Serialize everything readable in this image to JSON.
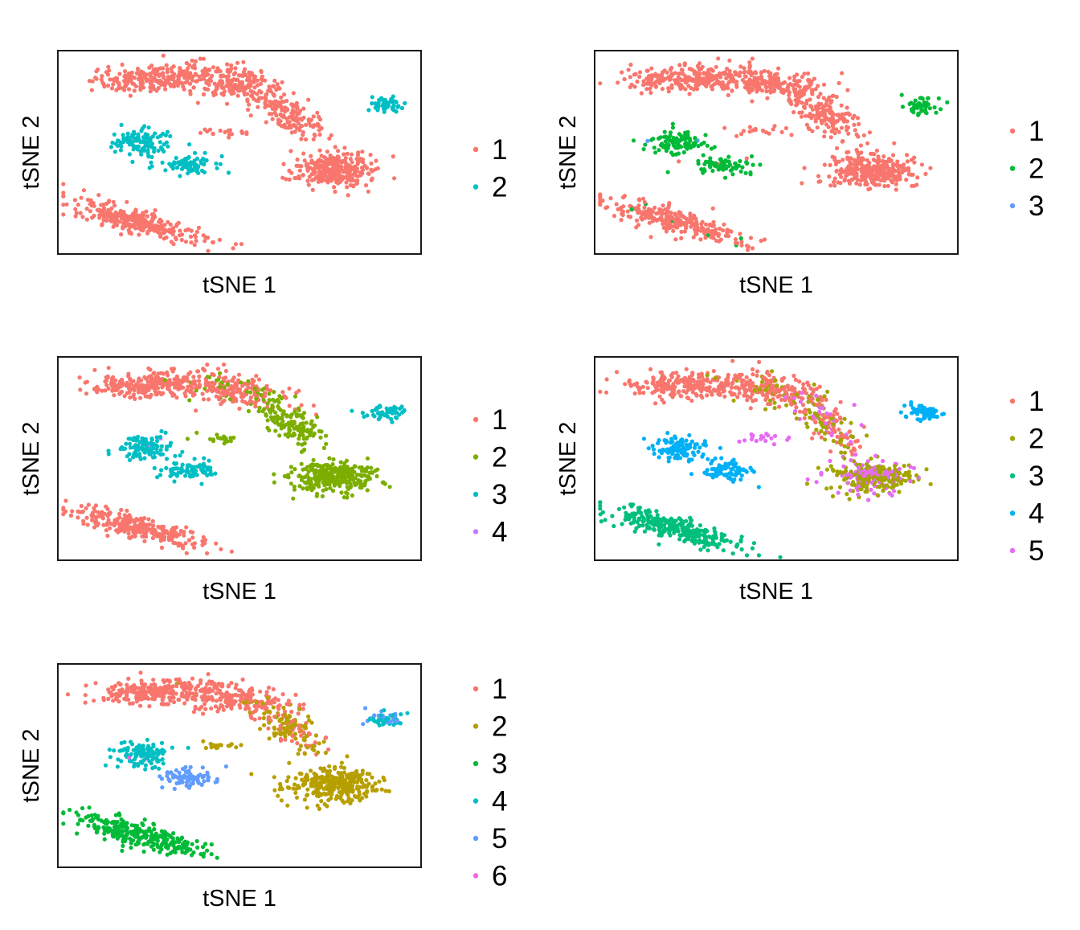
{
  "chart_data": [
    {
      "type": "scatter",
      "xlabel": "tSNE 1",
      "ylabel": "tSNE 2",
      "grid": false,
      "axis_ticks": false,
      "legend_position": "right",
      "legend": [
        "1",
        "2"
      ],
      "colors": [
        "#F8766D",
        "#00BFC4"
      ],
      "regions": [
        {
          "name": "top-band-left",
          "cx": 0.25,
          "cy": 0.86,
          "sx": 0.08,
          "sy": 0.03,
          "n": 220,
          "mix": [
            [
              1,
              1
            ]
          ]
        },
        {
          "name": "top-band-mid",
          "cx": 0.48,
          "cy": 0.84,
          "sx": 0.08,
          "sy": 0.04,
          "n": 220,
          "mix": [
            [
              1,
              1
            ]
          ]
        },
        {
          "name": "diag-arm",
          "cx": 0.64,
          "cy": 0.68,
          "sx": 0.05,
          "sy": 0.05,
          "n": 150,
          "mix": [
            [
              1,
              1
            ]
          ]
        },
        {
          "name": "right-blob",
          "cx": 0.76,
          "cy": 0.41,
          "sx": 0.06,
          "sy": 0.04,
          "n": 300,
          "mix": [
            [
              1,
              1
            ]
          ]
        },
        {
          "name": "upper-left-blob",
          "cx": 0.23,
          "cy": 0.55,
          "sx": 0.04,
          "sy": 0.03,
          "n": 110,
          "mix": [
            [
              2,
              1
            ]
          ]
        },
        {
          "name": "mid-left-blob",
          "cx": 0.36,
          "cy": 0.44,
          "sx": 0.04,
          "sy": 0.02,
          "n": 80,
          "mix": [
            [
              2,
              1
            ]
          ]
        },
        {
          "name": "far-right-blob",
          "cx": 0.9,
          "cy": 0.73,
          "sx": 0.025,
          "sy": 0.02,
          "n": 55,
          "mix": [
            [
              2,
              1
            ]
          ]
        },
        {
          "name": "bottom-left-cluster",
          "cx": 0.22,
          "cy": 0.16,
          "sx": 0.09,
          "sy": 0.03,
          "n": 280,
          "mix": [
            [
              1,
              1
            ]
          ]
        },
        {
          "name": "bridge",
          "cx": 0.45,
          "cy": 0.6,
          "sx": 0.04,
          "sy": 0.012,
          "n": 18,
          "mix": [
            [
              1,
              1
            ]
          ]
        }
      ]
    },
    {
      "type": "scatter",
      "xlabel": "tSNE 1",
      "ylabel": "tSNE 2",
      "grid": false,
      "axis_ticks": false,
      "legend_position": "right",
      "legend": [
        "1",
        "2",
        "3"
      ],
      "colors": [
        "#F8766D",
        "#00BA38",
        "#619CFF"
      ],
      "regions": [
        {
          "name": "top-band-left",
          "cx": 0.25,
          "cy": 0.86,
          "sx": 0.08,
          "sy": 0.03,
          "n": 220,
          "mix": [
            [
              1,
              1
            ]
          ]
        },
        {
          "name": "top-band-mid",
          "cx": 0.48,
          "cy": 0.84,
          "sx": 0.08,
          "sy": 0.04,
          "n": 220,
          "mix": [
            [
              1,
              0.99
            ],
            [
              3,
              0.01
            ]
          ]
        },
        {
          "name": "diag-arm",
          "cx": 0.64,
          "cy": 0.68,
          "sx": 0.05,
          "sy": 0.05,
          "n": 150,
          "mix": [
            [
              1,
              1
            ]
          ]
        },
        {
          "name": "right-blob",
          "cx": 0.76,
          "cy": 0.41,
          "sx": 0.06,
          "sy": 0.04,
          "n": 300,
          "mix": [
            [
              1,
              1
            ]
          ]
        },
        {
          "name": "upper-left-blob",
          "cx": 0.23,
          "cy": 0.55,
          "sx": 0.04,
          "sy": 0.03,
          "n": 110,
          "mix": [
            [
              2,
              0.97
            ],
            [
              3,
              0.03
            ]
          ]
        },
        {
          "name": "mid-left-blob",
          "cx": 0.36,
          "cy": 0.44,
          "sx": 0.04,
          "sy": 0.02,
          "n": 80,
          "mix": [
            [
              2,
              0.9
            ],
            [
              1,
              0.1
            ]
          ]
        },
        {
          "name": "far-right-blob",
          "cx": 0.9,
          "cy": 0.73,
          "sx": 0.025,
          "sy": 0.02,
          "n": 55,
          "mix": [
            [
              2,
              1
            ]
          ]
        },
        {
          "name": "bottom-left-cluster",
          "cx": 0.22,
          "cy": 0.16,
          "sx": 0.09,
          "sy": 0.03,
          "n": 280,
          "mix": [
            [
              1,
              0.96
            ],
            [
              2,
              0.04
            ]
          ]
        },
        {
          "name": "bridge",
          "cx": 0.45,
          "cy": 0.6,
          "sx": 0.04,
          "sy": 0.012,
          "n": 18,
          "mix": [
            [
              1,
              1
            ]
          ]
        }
      ]
    },
    {
      "type": "scatter",
      "xlabel": "tSNE 1",
      "ylabel": "tSNE 2",
      "grid": false,
      "axis_ticks": false,
      "legend_position": "right",
      "legend": [
        "1",
        "2",
        "3",
        "4"
      ],
      "colors": [
        "#F8766D",
        "#7CAE00",
        "#00BFC4",
        "#C77CFF"
      ],
      "regions": [
        {
          "name": "top-band-left",
          "cx": 0.25,
          "cy": 0.86,
          "sx": 0.08,
          "sy": 0.03,
          "n": 220,
          "mix": [
            [
              1,
              1
            ]
          ]
        },
        {
          "name": "top-band-mid",
          "cx": 0.48,
          "cy": 0.84,
          "sx": 0.08,
          "sy": 0.04,
          "n": 220,
          "mix": [
            [
              1,
              0.85
            ],
            [
              2,
              0.15
            ]
          ]
        },
        {
          "name": "diag-arm",
          "cx": 0.64,
          "cy": 0.68,
          "sx": 0.05,
          "sy": 0.05,
          "n": 150,
          "mix": [
            [
              2,
              1
            ]
          ]
        },
        {
          "name": "right-blob",
          "cx": 0.76,
          "cy": 0.41,
          "sx": 0.06,
          "sy": 0.04,
          "n": 300,
          "mix": [
            [
              2,
              1
            ]
          ]
        },
        {
          "name": "upper-left-blob",
          "cx": 0.23,
          "cy": 0.55,
          "sx": 0.04,
          "sy": 0.03,
          "n": 110,
          "mix": [
            [
              3,
              0.98
            ],
            [
              4,
              0.02
            ]
          ]
        },
        {
          "name": "mid-left-blob",
          "cx": 0.36,
          "cy": 0.44,
          "sx": 0.04,
          "sy": 0.02,
          "n": 80,
          "mix": [
            [
              3,
              1
            ]
          ]
        },
        {
          "name": "far-right-blob",
          "cx": 0.9,
          "cy": 0.73,
          "sx": 0.025,
          "sy": 0.02,
          "n": 55,
          "mix": [
            [
              3,
              1
            ]
          ]
        },
        {
          "name": "bottom-left-cluster",
          "cx": 0.22,
          "cy": 0.16,
          "sx": 0.09,
          "sy": 0.03,
          "n": 280,
          "mix": [
            [
              1,
              1
            ]
          ]
        },
        {
          "name": "bridge",
          "cx": 0.45,
          "cy": 0.6,
          "sx": 0.04,
          "sy": 0.012,
          "n": 18,
          "mix": [
            [
              2,
              1
            ]
          ]
        }
      ]
    },
    {
      "type": "scatter",
      "xlabel": "tSNE 1",
      "ylabel": "tSNE 2",
      "grid": false,
      "axis_ticks": false,
      "legend_position": "right",
      "legend": [
        "1",
        "2",
        "3",
        "4",
        "5"
      ],
      "colors": [
        "#F8766D",
        "#A3A500",
        "#00BF7D",
        "#00B0F6",
        "#E76BF3"
      ],
      "regions": [
        {
          "name": "top-band-left",
          "cx": 0.25,
          "cy": 0.86,
          "sx": 0.08,
          "sy": 0.03,
          "n": 220,
          "mix": [
            [
              1,
              1
            ]
          ]
        },
        {
          "name": "top-band-mid",
          "cx": 0.48,
          "cy": 0.84,
          "sx": 0.08,
          "sy": 0.04,
          "n": 220,
          "mix": [
            [
              1,
              0.8
            ],
            [
              2,
              0.2
            ]
          ]
        },
        {
          "name": "diag-arm",
          "cx": 0.64,
          "cy": 0.68,
          "sx": 0.05,
          "sy": 0.05,
          "n": 150,
          "mix": [
            [
              1,
              0.45
            ],
            [
              2,
              0.35
            ],
            [
              5,
              0.2
            ]
          ]
        },
        {
          "name": "right-blob",
          "cx": 0.76,
          "cy": 0.41,
          "sx": 0.06,
          "sy": 0.04,
          "n": 300,
          "mix": [
            [
              2,
              0.6
            ],
            [
              5,
              0.4
            ]
          ]
        },
        {
          "name": "upper-left-blob",
          "cx": 0.23,
          "cy": 0.55,
          "sx": 0.04,
          "sy": 0.03,
          "n": 110,
          "mix": [
            [
              4,
              1
            ]
          ]
        },
        {
          "name": "mid-left-blob",
          "cx": 0.36,
          "cy": 0.44,
          "sx": 0.04,
          "sy": 0.02,
          "n": 80,
          "mix": [
            [
              4,
              1
            ]
          ]
        },
        {
          "name": "far-right-blob",
          "cx": 0.9,
          "cy": 0.73,
          "sx": 0.025,
          "sy": 0.02,
          "n": 55,
          "mix": [
            [
              4,
              1
            ]
          ]
        },
        {
          "name": "bottom-left-cluster",
          "cx": 0.22,
          "cy": 0.16,
          "sx": 0.09,
          "sy": 0.03,
          "n": 280,
          "mix": [
            [
              3,
              1
            ]
          ]
        },
        {
          "name": "bridge",
          "cx": 0.45,
          "cy": 0.6,
          "sx": 0.04,
          "sy": 0.012,
          "n": 18,
          "mix": [
            [
              5,
              1
            ]
          ]
        }
      ]
    },
    {
      "type": "scatter",
      "xlabel": "tSNE 1",
      "ylabel": "tSNE 2",
      "grid": false,
      "axis_ticks": false,
      "legend_position": "right",
      "legend": [
        "1",
        "2",
        "3",
        "4",
        "5",
        "6"
      ],
      "colors": [
        "#F8766D",
        "#B79F00",
        "#00BA38",
        "#00BFC4",
        "#619CFF",
        "#F564E3"
      ],
      "regions": [
        {
          "name": "top-band-left",
          "cx": 0.25,
          "cy": 0.86,
          "sx": 0.08,
          "sy": 0.03,
          "n": 220,
          "mix": [
            [
              1,
              1
            ]
          ]
        },
        {
          "name": "top-band-mid",
          "cx": 0.48,
          "cy": 0.84,
          "sx": 0.08,
          "sy": 0.04,
          "n": 220,
          "mix": [
            [
              1,
              0.95
            ],
            [
              2,
              0.05
            ]
          ]
        },
        {
          "name": "diag-arm",
          "cx": 0.64,
          "cy": 0.68,
          "sx": 0.05,
          "sy": 0.05,
          "n": 150,
          "mix": [
            [
              2,
              0.65
            ],
            [
              1,
              0.35
            ]
          ]
        },
        {
          "name": "right-blob",
          "cx": 0.76,
          "cy": 0.41,
          "sx": 0.06,
          "sy": 0.04,
          "n": 300,
          "mix": [
            [
              2,
              1
            ]
          ]
        },
        {
          "name": "upper-left-blob",
          "cx": 0.23,
          "cy": 0.55,
          "sx": 0.04,
          "sy": 0.03,
          "n": 110,
          "mix": [
            [
              4,
              0.97
            ],
            [
              6,
              0.03
            ]
          ]
        },
        {
          "name": "mid-left-blob",
          "cx": 0.36,
          "cy": 0.44,
          "sx": 0.04,
          "sy": 0.02,
          "n": 80,
          "mix": [
            [
              5,
              1
            ]
          ]
        },
        {
          "name": "far-right-blob",
          "cx": 0.9,
          "cy": 0.73,
          "sx": 0.025,
          "sy": 0.02,
          "n": 55,
          "mix": [
            [
              4,
              0.6
            ],
            [
              5,
              0.4
            ]
          ]
        },
        {
          "name": "bottom-left-cluster",
          "cx": 0.22,
          "cy": 0.16,
          "sx": 0.09,
          "sy": 0.03,
          "n": 280,
          "mix": [
            [
              3,
              1
            ]
          ]
        },
        {
          "name": "bridge",
          "cx": 0.45,
          "cy": 0.6,
          "sx": 0.04,
          "sy": 0.012,
          "n": 18,
          "mix": [
            [
              2,
              1
            ]
          ]
        }
      ]
    }
  ]
}
